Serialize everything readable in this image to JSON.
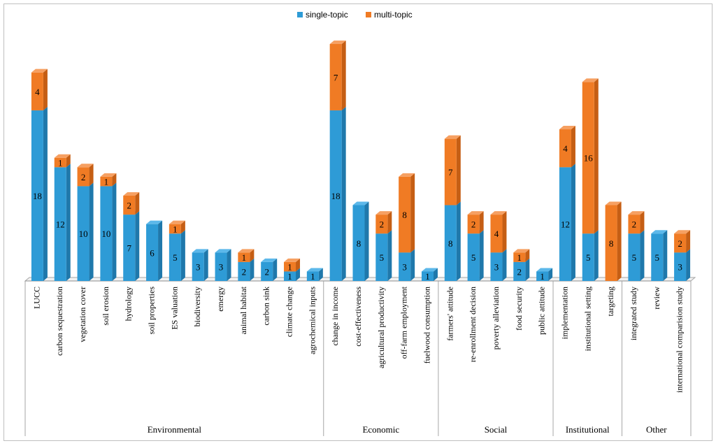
{
  "chart_data": {
    "type": "bar",
    "stacked": true,
    "title": "",
    "xlabel": "",
    "ylabel": "",
    "ylim": [
      0,
      25
    ],
    "grid": false,
    "legend_position": "top-center",
    "colors": {
      "single": "#2e9bd6",
      "multi": "#f07b24",
      "single_side": "#1f78ab",
      "multi_side": "#c55e14",
      "single_top": "#5cb8ea",
      "multi_top": "#f6a062"
    },
    "legend": [
      {
        "key": "single",
        "label": "single-topic"
      },
      {
        "key": "multi",
        "label": "multi-topic"
      }
    ],
    "categories": [
      "LUCC",
      "carbon sequestration",
      "vegetation cover",
      "soil erosion",
      "hydrology",
      "soil properties",
      "ES valuation",
      "biodiversity",
      "emergy",
      "animal habitat",
      "carbon sink",
      "climate change",
      "agrochemical inputs",
      "change in income",
      "cost-effectiveness",
      "agricultural productivity",
      "off-farm employment",
      "fuelwood consumption",
      "farmers' attitude",
      "re-enrollment decision",
      "poverty alleviation",
      "food security",
      "public attitude",
      "implementation",
      "institutional setting",
      "targeting",
      "integrated study",
      "review",
      "international comparision study"
    ],
    "series": [
      {
        "name": "single-topic",
        "values": [
          18,
          12,
          10,
          10,
          7,
          6,
          5,
          3,
          3,
          2,
          2,
          1,
          1,
          18,
          8,
          5,
          3,
          1,
          8,
          5,
          3,
          2,
          1,
          12,
          5,
          0,
          5,
          5,
          3
        ]
      },
      {
        "name": "multi-topic",
        "values": [
          4,
          1,
          2,
          1,
          2,
          0,
          1,
          0,
          0,
          1,
          0,
          1,
          0,
          7,
          0,
          2,
          8,
          0,
          7,
          2,
          4,
          1,
          0,
          4,
          16,
          8,
          2,
          0,
          2
        ]
      }
    ],
    "groups": [
      {
        "label": "Environmental",
        "count": 13
      },
      {
        "label": "Economic",
        "count": 5
      },
      {
        "label": "Social",
        "count": 5
      },
      {
        "label": "Institutional",
        "count": 3
      },
      {
        "label": "Other",
        "count": 3
      }
    ]
  }
}
